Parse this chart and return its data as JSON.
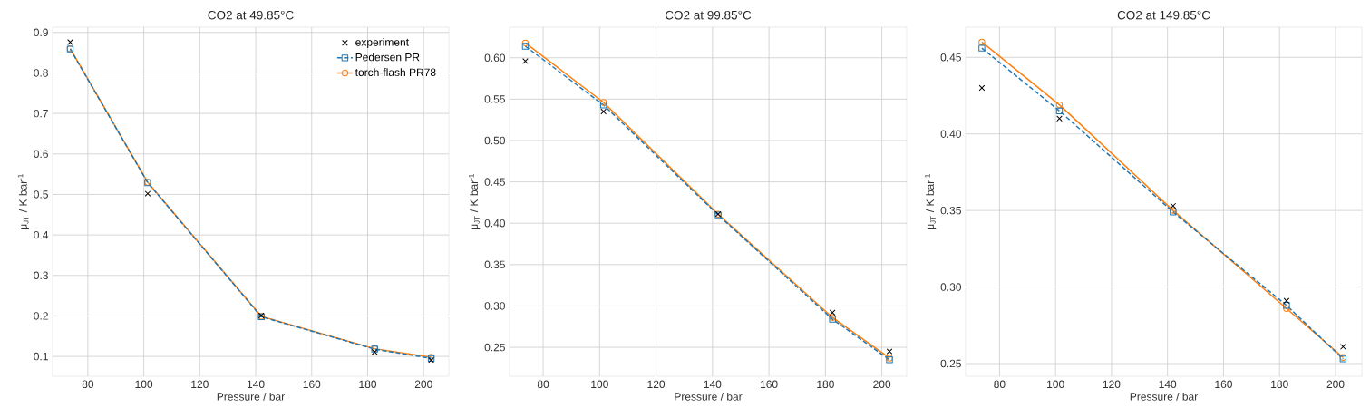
{
  "chart_data": [
    {
      "type": "line",
      "title": "CO2 at 49.85°C",
      "xlabel": "Pressure / bar",
      "ylabel": "μ$_{JT}$ / K bar$^{-1}$",
      "x": [
        73.7,
        101.4,
        142,
        182.5,
        202.7
      ],
      "xlim": [
        67.4,
        209
      ],
      "xticks": [
        80,
        100,
        120,
        140,
        160,
        180,
        200
      ],
      "ylim": [
        0.051,
        0.913
      ],
      "yticks": [
        0.1,
        0.2,
        0.3,
        0.4,
        0.5,
        0.6,
        0.7,
        0.8,
        0.9
      ],
      "grid": true,
      "legend": "top right",
      "series": [
        {
          "name": "experiment",
          "type": "scatter",
          "color": "#000000",
          "marker": "cross",
          "values": [
            0.876,
            0.502,
            0.201,
            0.111,
            0.091
          ]
        },
        {
          "name": "Pedersen PR",
          "type": "line",
          "color": "#1f77b4",
          "marker": "square",
          "line_style": "dashed",
          "values": [
            0.859,
            0.529,
            0.198,
            0.118,
            0.095
          ]
        },
        {
          "name": "torch-flash PR78",
          "type": "line",
          "color": "#ff7f0e",
          "marker": "circle",
          "line_style": "solid",
          "values": [
            0.86,
            0.53,
            0.199,
            0.119,
            0.098
          ]
        }
      ]
    },
    {
      "type": "line",
      "title": "CO2 at 99.85°C",
      "xlabel": "Pressure / bar",
      "ylabel": "μ$_{JT}$ / K bar$^{-1}$",
      "x": [
        73.7,
        101.4,
        142,
        182.5,
        202.7
      ],
      "xlim": [
        68.1,
        208.8
      ],
      "xticks": [
        80,
        100,
        120,
        140,
        160,
        180,
        200
      ],
      "ylim": [
        0.215,
        0.637
      ],
      "yticks": [
        {
          "value": 0.25,
          "label": "0.25"
        },
        {
          "value": 0.3,
          "label": "0.30"
        },
        {
          "value": 0.35,
          "label": "0.35"
        },
        {
          "value": 0.4,
          "label": "0.40"
        },
        {
          "value": 0.45,
          "label": "0.45"
        },
        {
          "value": 0.5,
          "label": "0.50"
        },
        {
          "value": 0.55,
          "label": "0.55"
        },
        {
          "value": 0.6,
          "label": "0.60"
        }
      ],
      "grid": true,
      "series": [
        {
          "type": "scatter",
          "color": "#000000",
          "marker": "cross",
          "values": [
            0.596,
            0.535,
            0.411,
            0.292,
            0.245
          ]
        },
        {
          "type": "line",
          "color": "#1f77b4",
          "marker": "square",
          "line_style": "dashed",
          "values": [
            0.614,
            0.543,
            0.41,
            0.284,
            0.235
          ]
        },
        {
          "type": "line",
          "color": "#ff7f0e",
          "marker": "circle",
          "line_style": "solid",
          "values": [
            0.618,
            0.546,
            0.411,
            0.286,
            0.237
          ]
        }
      ]
    },
    {
      "type": "line",
      "title": "CO2 at 149.85°C",
      "xlabel": "Pressure / bar",
      "ylabel": "μ$_{JT}$ / K bar$^{-1}$",
      "x": [
        73.7,
        101.4,
        142,
        182.5,
        202.7
      ],
      "xlim": [
        67.9,
        209.4
      ],
      "xticks": [
        80,
        100,
        120,
        140,
        160,
        180,
        200
      ],
      "ylim": [
        0.2417,
        0.4697
      ],
      "yticks": [
        {
          "value": 0.25,
          "label": "0.25"
        },
        {
          "value": 0.3,
          "label": "0.30"
        },
        {
          "value": 0.35,
          "label": "0.35"
        },
        {
          "value": 0.4,
          "label": "0.40"
        },
        {
          "value": 0.45,
          "label": "0.45"
        }
      ],
      "grid": true,
      "series": [
        {
          "type": "scatter",
          "color": "#000000",
          "marker": "cross",
          "values": [
            0.43,
            0.41,
            0.353,
            0.291,
            0.261
          ]
        },
        {
          "type": "line",
          "color": "#1f77b4",
          "marker": "square",
          "line_style": "dashed",
          "values": [
            0.456,
            0.415,
            0.349,
            0.288,
            0.253
          ]
        },
        {
          "type": "line",
          "color": "#ff7f0e",
          "marker": "circle",
          "line_style": "solid",
          "values": [
            0.46,
            0.419,
            0.35,
            0.286,
            0.254
          ]
        }
      ]
    }
  ]
}
